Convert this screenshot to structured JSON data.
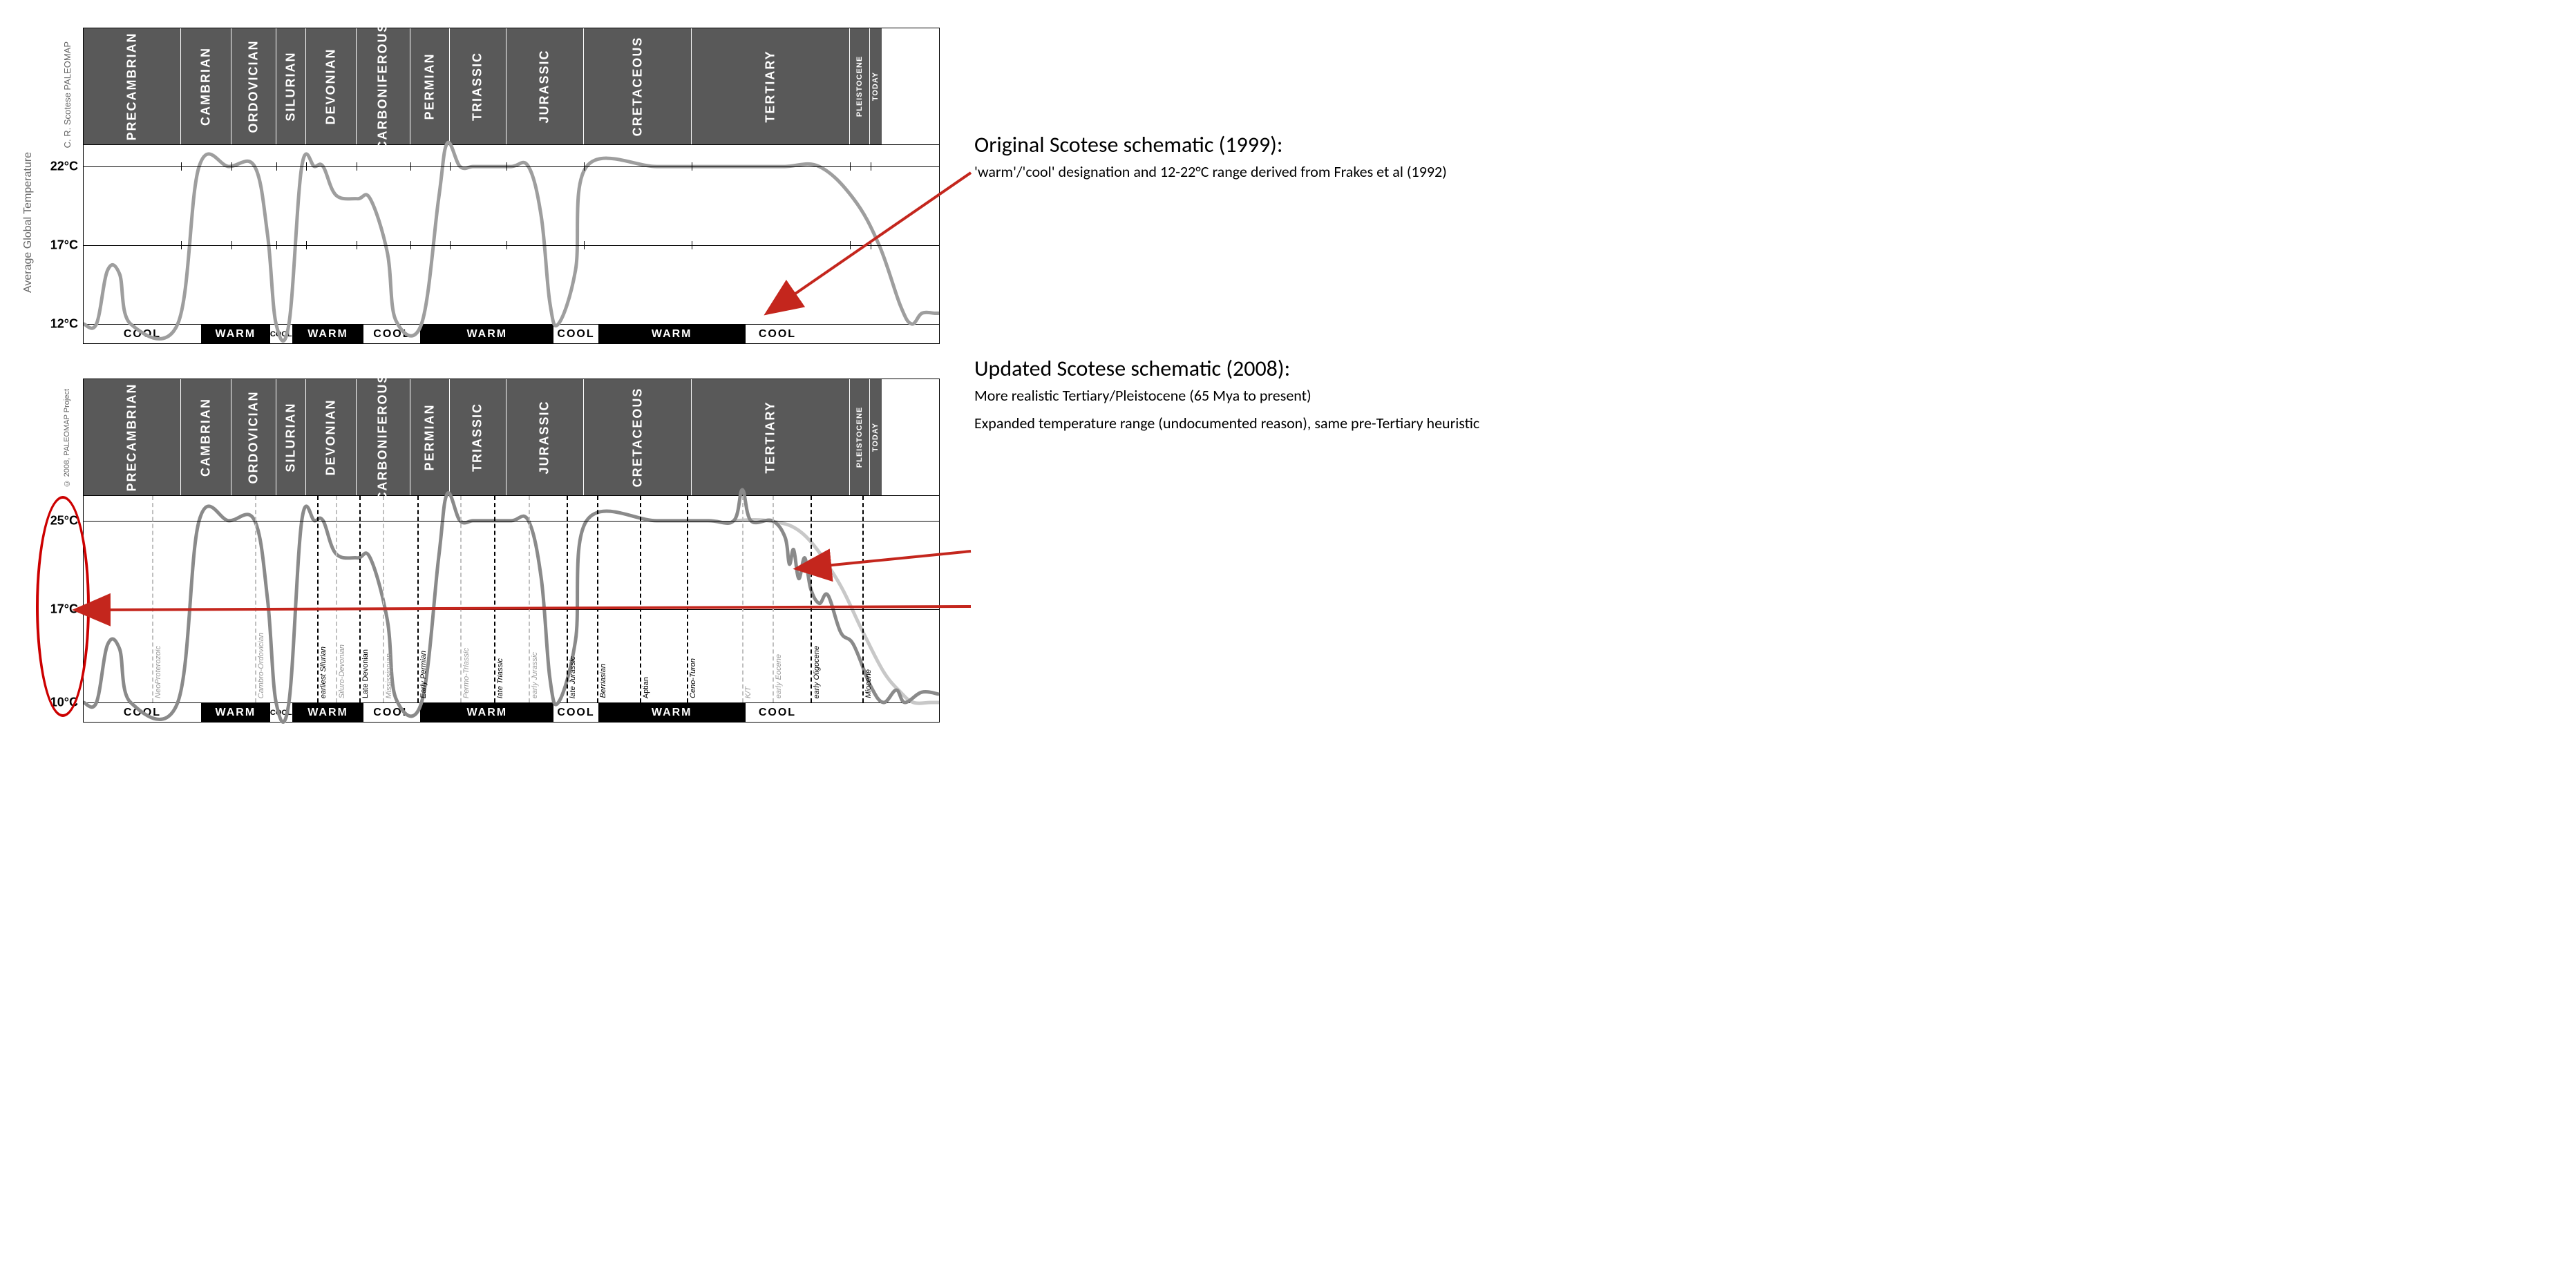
{
  "periods": [
    {
      "label": "PRECAMBRIAN",
      "w": 11.4
    },
    {
      "label": "CAMBRIAN",
      "w": 5.9
    },
    {
      "label": "ORDOVICIAN",
      "w": 5.2
    },
    {
      "label": "SILURIAN",
      "w": 3.5
    },
    {
      "label": "DEVONIAN",
      "w": 5.9
    },
    {
      "label": "CARBONIFEROUS",
      "w": 6.3
    },
    {
      "label": "PERMIAN",
      "w": 4.6
    },
    {
      "label": "TRIASSIC",
      "w": 6.6
    },
    {
      "label": "JURASSIC",
      "w": 9.1
    },
    {
      "label": "CRETACEOUS",
      "w": 12.6
    },
    {
      "label": "TERTIARY",
      "w": 18.5
    },
    {
      "label": "PLEISTOCENE",
      "w": 2.3,
      "small": true
    },
    {
      "label": "TODAY",
      "w": 1.4,
      "small": true
    }
  ],
  "chart1": {
    "source_label": "C. R. Scotese\nPALEOMAP",
    "yaxis_title": "Average Global Temperature",
    "yticks": [
      {
        "label": "22°C",
        "y": 12
      },
      {
        "label": "17°C",
        "y": 56
      },
      {
        "label": "12°C",
        "y": 100
      }
    ],
    "hlines_y": [
      12,
      56
    ],
    "curve_color": "#9e9e9e",
    "curve_width": 5,
    "curve_points": [
      [
        0,
        100
      ],
      [
        1.5,
        100
      ],
      [
        2.8,
        70
      ],
      [
        4.2,
        72
      ],
      [
        5.5,
        100
      ],
      [
        11,
        100
      ],
      [
        13.5,
        12
      ],
      [
        17,
        12
      ],
      [
        20,
        12
      ],
      [
        21.5,
        50
      ],
      [
        22.5,
        100
      ],
      [
        24,
        100
      ],
      [
        25.5,
        12
      ],
      [
        27,
        12
      ],
      [
        28,
        12
      ],
      [
        29.5,
        28
      ],
      [
        32,
        30
      ],
      [
        33.5,
        30
      ],
      [
        35.5,
        60
      ],
      [
        36.5,
        98
      ],
      [
        39.5,
        100
      ],
      [
        41.5,
        30
      ],
      [
        42.5,
        -1
      ],
      [
        44,
        12
      ],
      [
        45.5,
        12
      ],
      [
        47,
        12
      ],
      [
        50,
        12
      ],
      [
        52,
        12
      ],
      [
        53.5,
        40
      ],
      [
        54.5,
        88
      ],
      [
        55.5,
        100
      ],
      [
        57.5,
        70
      ],
      [
        58.8,
        12
      ],
      [
        67,
        12
      ],
      [
        73,
        12
      ],
      [
        76,
        12
      ],
      [
        78,
        12
      ],
      [
        82,
        12
      ],
      [
        86,
        12
      ],
      [
        90,
        30
      ],
      [
        93,
        56
      ],
      [
        95.5,
        90
      ],
      [
        96.8,
        100
      ],
      [
        98,
        94
      ],
      [
        99.5,
        94
      ],
      [
        100,
        94
      ]
    ],
    "cwbar": [
      {
        "t": "COOL",
        "w": 13.8,
        "c": "cool"
      },
      {
        "t": "WARM",
        "w": 8.0,
        "c": "warm"
      },
      {
        "t": "COOL",
        "w": 2.6,
        "c": "cool",
        "tiny": true
      },
      {
        "t": "WARM",
        "w": 8.3,
        "c": "warm"
      },
      {
        "t": "COOL",
        "w": 6.7,
        "c": "cool"
      },
      {
        "t": "WARM",
        "w": 15.5,
        "c": "warm"
      },
      {
        "t": "COOL",
        "w": 5.3,
        "c": "cool"
      },
      {
        "t": "WARM",
        "w": 17.1,
        "c": "warm"
      },
      {
        "t": "COOL",
        "w": 7.5,
        "c": "cool"
      }
    ],
    "xtick_positions": [
      11.4,
      17.3,
      22.5,
      26.0,
      31.9,
      38.2,
      42.8,
      49.4,
      58.5,
      71.1,
      89.6,
      92.0
    ]
  },
  "chart2": {
    "source_label": "© 2008, PALEOMAP Project",
    "yticks": [
      {
        "label": "25°C",
        "y": 12
      },
      {
        "label": "17°C",
        "y": 55
      },
      {
        "label": "10°C",
        "y": 100
      }
    ],
    "hlines_y": [
      12,
      55
    ],
    "curve_color": "#8a8a8a",
    "curve_width": 5,
    "curve_points": [
      [
        0,
        100
      ],
      [
        1.5,
        100
      ],
      [
        2.8,
        72
      ],
      [
        4.2,
        74
      ],
      [
        5.5,
        100
      ],
      [
        11,
        100
      ],
      [
        13.5,
        12
      ],
      [
        17,
        12
      ],
      [
        20,
        12
      ],
      [
        21.5,
        50
      ],
      [
        22.5,
        100
      ],
      [
        24,
        100
      ],
      [
        25.5,
        12
      ],
      [
        27,
        12
      ],
      [
        28,
        12
      ],
      [
        29.5,
        28
      ],
      [
        32,
        30
      ],
      [
        33.5,
        30
      ],
      [
        35.5,
        60
      ],
      [
        36.5,
        98
      ],
      [
        39.5,
        100
      ],
      [
        41.5,
        30
      ],
      [
        42.5,
        -1
      ],
      [
        44,
        12
      ],
      [
        45.5,
        12
      ],
      [
        47,
        12
      ],
      [
        50,
        12
      ],
      [
        52,
        12
      ],
      [
        53.5,
        40
      ],
      [
        54.5,
        88
      ],
      [
        55.5,
        100
      ],
      [
        57.5,
        70
      ],
      [
        58.8,
        12
      ],
      [
        67,
        12
      ],
      [
        73,
        12
      ],
      [
        76,
        12
      ],
      [
        77,
        -3
      ],
      [
        78,
        12
      ],
      [
        80.5,
        12
      ],
      [
        82,
        20
      ],
      [
        82.5,
        33
      ],
      [
        83,
        26
      ],
      [
        83.6,
        40
      ],
      [
        84.3,
        30
      ],
      [
        85,
        45
      ],
      [
        86,
        52
      ],
      [
        87,
        48
      ],
      [
        88.5,
        66
      ],
      [
        90,
        72
      ],
      [
        92,
        92
      ],
      [
        93.5,
        100
      ],
      [
        95,
        94
      ],
      [
        96,
        100
      ],
      [
        98,
        95
      ],
      [
        100,
        96
      ]
    ],
    "ghost_curve_color": "#c8c8c8",
    "ghost_curve_width": 5,
    "ghost_curve_points": [
      [
        76,
        12
      ],
      [
        80,
        12
      ],
      [
        84,
        18
      ],
      [
        88,
        40
      ],
      [
        91,
        65
      ],
      [
        93.5,
        85
      ],
      [
        95.5,
        95
      ],
      [
        97,
        100
      ],
      [
        99,
        100
      ],
      [
        100,
        100
      ]
    ],
    "cwbar": [
      {
        "t": "COOL",
        "w": 13.8,
        "c": "cool"
      },
      {
        "t": "WARM",
        "w": 8.0,
        "c": "warm"
      },
      {
        "t": "COOL",
        "w": 2.6,
        "c": "cool",
        "tiny": true
      },
      {
        "t": "WARM",
        "w": 8.3,
        "c": "warm"
      },
      {
        "t": "COOL",
        "w": 6.7,
        "c": "cool"
      },
      {
        "t": "WARM",
        "w": 15.5,
        "c": "warm"
      },
      {
        "t": "COOL",
        "w": 5.3,
        "c": "cool"
      },
      {
        "t": "WARM",
        "w": 17.1,
        "c": "warm"
      },
      {
        "t": "COOL",
        "w": 7.5,
        "c": "cool"
      }
    ],
    "vlines": [
      {
        "x": 8.0,
        "color": "#bfbfbf",
        "label": "NeoProterozoic",
        "lc": "#999",
        "italic": true
      },
      {
        "x": 20.0,
        "color": "#bfbfbf",
        "label": "Cambro-Ordovician",
        "lc": "#999",
        "italic": true
      },
      {
        "x": 27.3,
        "color": "#000",
        "label": "earliest Silurian",
        "lc": "#000",
        "italic": true
      },
      {
        "x": 29.5,
        "color": "#bfbfbf",
        "label": "Siluro-Devonian",
        "lc": "#999",
        "italic": true
      },
      {
        "x": 32.2,
        "color": "#000",
        "label": "Late Devonian",
        "lc": "#000"
      },
      {
        "x": 35.0,
        "color": "#bfbfbf",
        "label": "Mississippian",
        "lc": "#999",
        "italic": true
      },
      {
        "x": 39.0,
        "color": "#000",
        "label": "Early Permian",
        "lc": "#000",
        "italic": true
      },
      {
        "x": 44.0,
        "color": "#bfbfbf",
        "label": "Permo-Triassic",
        "lc": "#999",
        "italic": true
      },
      {
        "x": 48.0,
        "color": "#000",
        "label": "late Triassic",
        "lc": "#000",
        "italic": true
      },
      {
        "x": 52.0,
        "color": "#bfbfbf",
        "label": "early Jurassic",
        "lc": "#999",
        "italic": true
      },
      {
        "x": 56.5,
        "color": "#000",
        "label": "late Jurassic",
        "lc": "#000",
        "italic": true
      },
      {
        "x": 60.0,
        "color": "#000",
        "label": "Berriasian",
        "lc": "#000",
        "italic": true
      },
      {
        "x": 65.0,
        "color": "#000",
        "label": "Aptian",
        "lc": "#000"
      },
      {
        "x": 70.5,
        "color": "#000",
        "label": "Ceno-Turon",
        "lc": "#000",
        "italic": true
      },
      {
        "x": 77.0,
        "color": "#bfbfbf",
        "label": "K/T",
        "lc": "#999",
        "italic": true
      },
      {
        "x": 80.5,
        "color": "#bfbfbf",
        "label": "early Eocene",
        "lc": "#999",
        "italic": true
      },
      {
        "x": 85.0,
        "color": "#000",
        "label": "early Oligocene",
        "lc": "#000",
        "italic": true
      },
      {
        "x": 91.0,
        "color": "#000",
        "label": "Miocene",
        "lc": "#000",
        "italic": true
      }
    ]
  },
  "annotations": {
    "a1_title": "Original Scotese schematic (1999):",
    "a1_body": "'warm'/'cool' designation and 12-22°C range derived from Frakes et al (1992)",
    "a2_title": "Updated Scotese schematic (2008):",
    "a2_body1": "More realistic Tertiary/Pleistocene (65 Mya to present)",
    "a2_body2": "Expanded temperature range (undocumented reason), same pre-Tertiary heuristic"
  },
  "colors": {
    "arrow": "#c4261d",
    "ellipse": "#c4261d"
  }
}
